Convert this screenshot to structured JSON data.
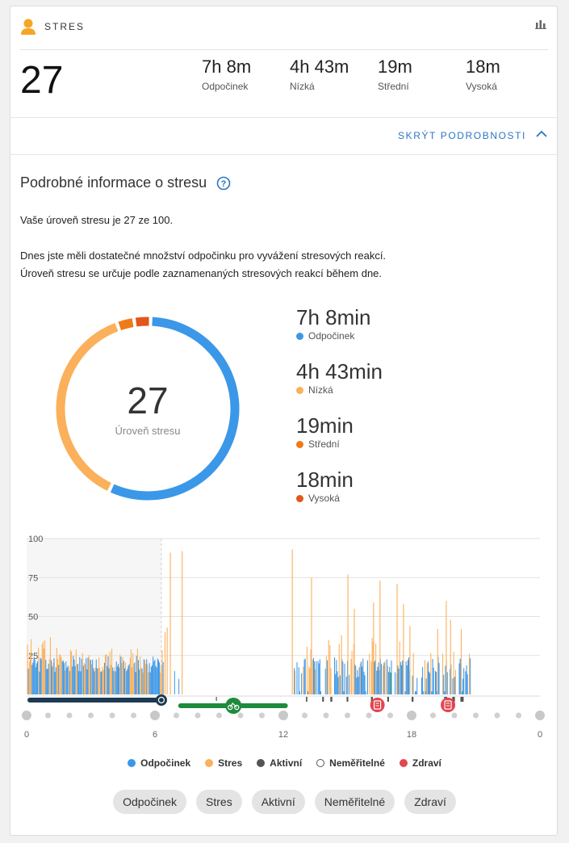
{
  "header": {
    "title": "STRES",
    "icon": "person-icon",
    "chart_icon": "bar-chart-icon",
    "accent": "#f5a623"
  },
  "summary": {
    "level": "27",
    "stats": [
      {
        "value": "7h 8m",
        "label": "Odpočinek"
      },
      {
        "value": "4h 43m",
        "label": "Nízká"
      },
      {
        "value": "19m",
        "label": "Střední"
      },
      {
        "value": "18m",
        "label": "Vysoká"
      }
    ]
  },
  "toggle": {
    "label": "SKRÝT PODROBNOSTI"
  },
  "details": {
    "title": "Podrobné informace o stresu",
    "level_text": "Vaše úroveň stresu je 27 ze 100.",
    "desc_line1": "Dnes jste měli dostatečné množství odpočinku pro vyvážení stresových reakcí.",
    "desc_line2": "Úroveň stresu se určuje podle zaznamenaných stresových reakcí během dne."
  },
  "donut": {
    "value": "27",
    "caption": "Úroveň stresu",
    "segments": [
      {
        "name": "Odpočinek",
        "minutes": 428,
        "color": "#3b97e8"
      },
      {
        "name": "Nízká",
        "minutes": 283,
        "color": "#fbb05b"
      },
      {
        "name": "Střední",
        "minutes": 19,
        "color": "#ef7a1a"
      },
      {
        "name": "Vysoká",
        "minutes": 18,
        "color": "#e0581a"
      }
    ]
  },
  "breakdown": [
    {
      "value": "7h 8min",
      "label": "Odpočinek",
      "color": "#3b97e8"
    },
    {
      "value": "4h 43min",
      "label": "Nízká",
      "color": "#fbb05b"
    },
    {
      "value": "19min",
      "label": "Střední",
      "color": "#ef7a1a"
    },
    {
      "value": "18min",
      "label": "Vysoká",
      "color": "#e0581a"
    }
  ],
  "chart_data": {
    "type": "bar",
    "title": "",
    "xlabel": "",
    "ylabel": "",
    "ylim": [
      0,
      100
    ],
    "y_ticks": [
      "100",
      "75",
      "50",
      "25"
    ],
    "x_ticks": [
      "0",
      "6",
      "12",
      "18",
      "0"
    ],
    "xlim": [
      0,
      24
    ],
    "sleep_window": [
      0,
      6.3
    ],
    "activity_window": [
      7.2,
      12.1
    ],
    "health_markers": [
      16.4,
      19.7
    ],
    "series": [
      {
        "name": "Odpočinek",
        "color": "#3b97e8"
      },
      {
        "name": "Stres",
        "color": "#fbb05b"
      }
    ],
    "colors": {
      "sleep": "#1d3a52",
      "activity": "#1e8a3c",
      "health": "#e2454f",
      "active": "#555555"
    }
  },
  "legend": [
    {
      "label": "Odpočinek",
      "color": "#3b97e8",
      "style": "filled"
    },
    {
      "label": "Stres",
      "color": "#fbb05b",
      "style": "filled"
    },
    {
      "label": "Aktivní",
      "color": "#555555",
      "style": "filled"
    },
    {
      "label": "Neměřitelné",
      "color": "#555555",
      "style": "outline"
    },
    {
      "label": "Zdraví",
      "color": "#e2454f",
      "style": "filled"
    }
  ],
  "filters": [
    "Odpočinek",
    "Stres",
    "Aktivní",
    "Neměřitelné",
    "Zdraví"
  ]
}
